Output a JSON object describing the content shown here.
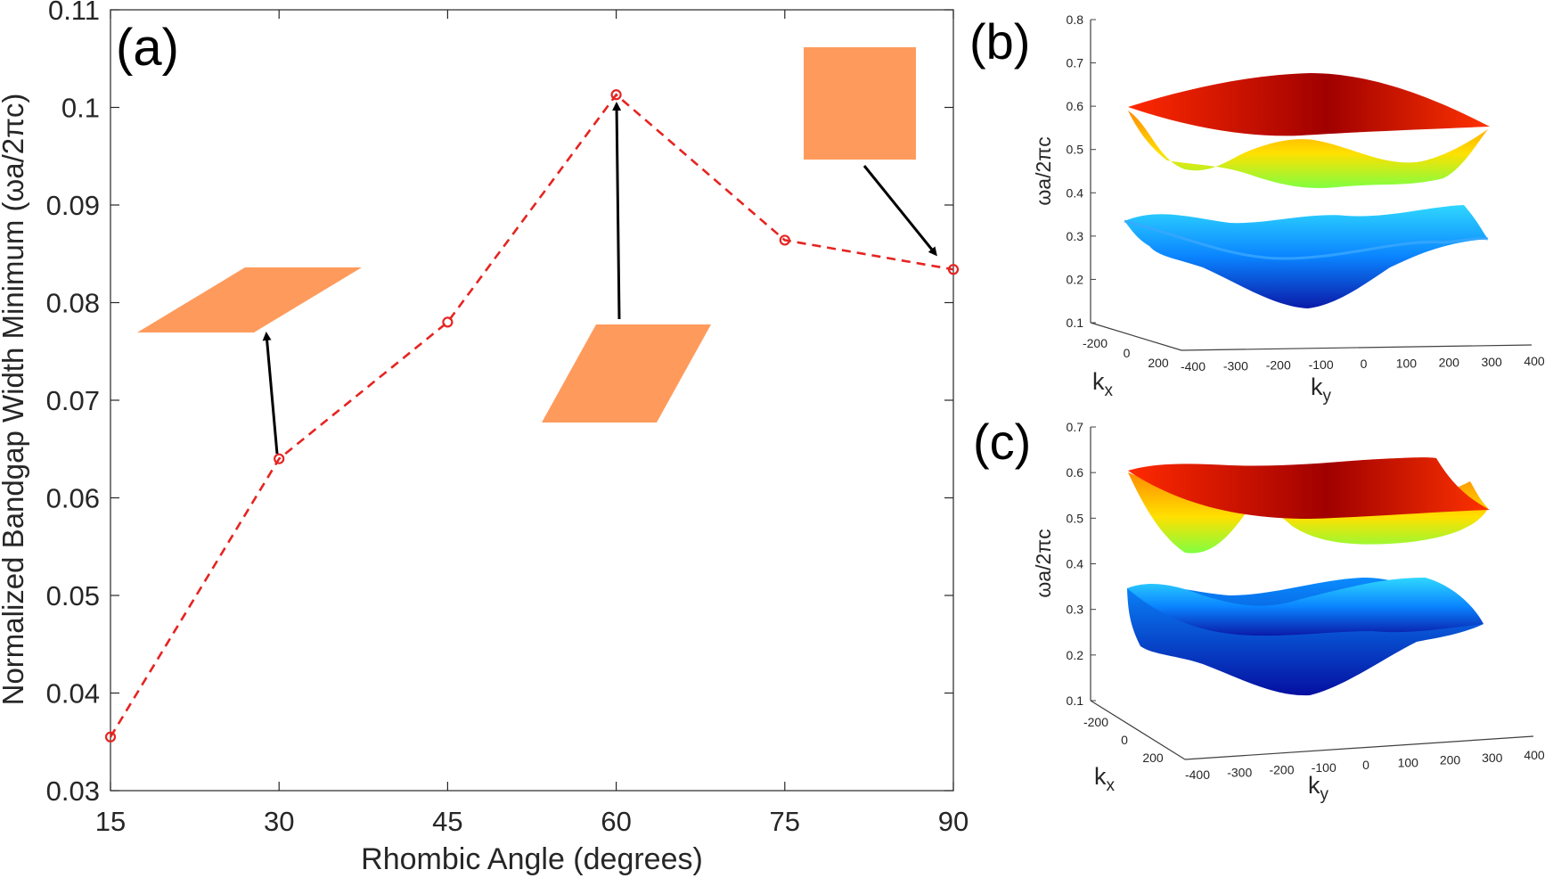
{
  "figure": {
    "panel_a_label": "(a)",
    "panel_b_label": "(b)",
    "panel_c_label": "(c)"
  },
  "chart_data": [
    {
      "type": "line",
      "panel": "(a)",
      "title": "",
      "xlabel": "Rhombic Angle (degrees)",
      "ylabel": "Normalized Bandgap Width Minimum (ωa/2πc)",
      "x": [
        15,
        30,
        45,
        60,
        75,
        90
      ],
      "series": [
        {
          "name": "",
          "values": [
            0.0355,
            0.064,
            0.078,
            0.1013,
            0.0864,
            0.0834
          ],
          "color": "#e52421",
          "line_style": "dashed",
          "marker": "open-circle"
        }
      ],
      "xlim": [
        15,
        90
      ],
      "ylim": [
        0.03,
        0.11
      ],
      "xticks": [
        15,
        30,
        45,
        60,
        75,
        90
      ],
      "yticks": [
        0.03,
        0.04,
        0.05,
        0.06,
        0.07,
        0.08,
        0.09,
        0.1,
        0.11
      ],
      "ytick_labels": [
        "0.03",
        "0.04",
        "0.05",
        "0.06",
        "0.07",
        "0.08",
        "0.09",
        "0.1",
        "0.11"
      ],
      "grid": false,
      "annotations": [
        {
          "shape": "rhombus",
          "angle_deg": 30,
          "points_to_x": 30,
          "color": "#fe9b5c"
        },
        {
          "shape": "rhombus",
          "angle_deg": 60,
          "points_to_x": 60,
          "color": "#fe9b5c"
        },
        {
          "shape": "square",
          "angle_deg": 90,
          "points_to_x": 90,
          "color": "#fe9b5c"
        }
      ]
    },
    {
      "type": "surface",
      "panel": "(b)",
      "zlabel": "ωa/2πc",
      "xlabel": "k",
      "xlabel_sub": "x",
      "ylabel": "k",
      "ylabel_sub": "y",
      "zticks": [
        "0.1",
        "0.2",
        "0.3",
        "0.4",
        "0.5",
        "0.6",
        "0.7",
        "0.8"
      ],
      "kx_ticks": [
        "-200",
        "0",
        "200"
      ],
      "ky_ticks": [
        "-400",
        "-300",
        "-200",
        "-100",
        "0",
        "100",
        "200",
        "300",
        "400"
      ],
      "colormap": "jet"
    },
    {
      "type": "surface",
      "panel": "(c)",
      "zlabel": "ωa/2πc",
      "xlabel": "k",
      "xlabel_sub": "x",
      "ylabel": "k",
      "ylabel_sub": "y",
      "zticks": [
        "0.1",
        "0.2",
        "0.3",
        "0.4",
        "0.5",
        "0.6",
        "0.7"
      ],
      "kx_ticks": [
        "-200",
        "0",
        "200"
      ],
      "ky_ticks": [
        "-400",
        "-300",
        "-200",
        "-100",
        "0",
        "100",
        "200",
        "300",
        "400"
      ],
      "colormap": "jet"
    }
  ]
}
